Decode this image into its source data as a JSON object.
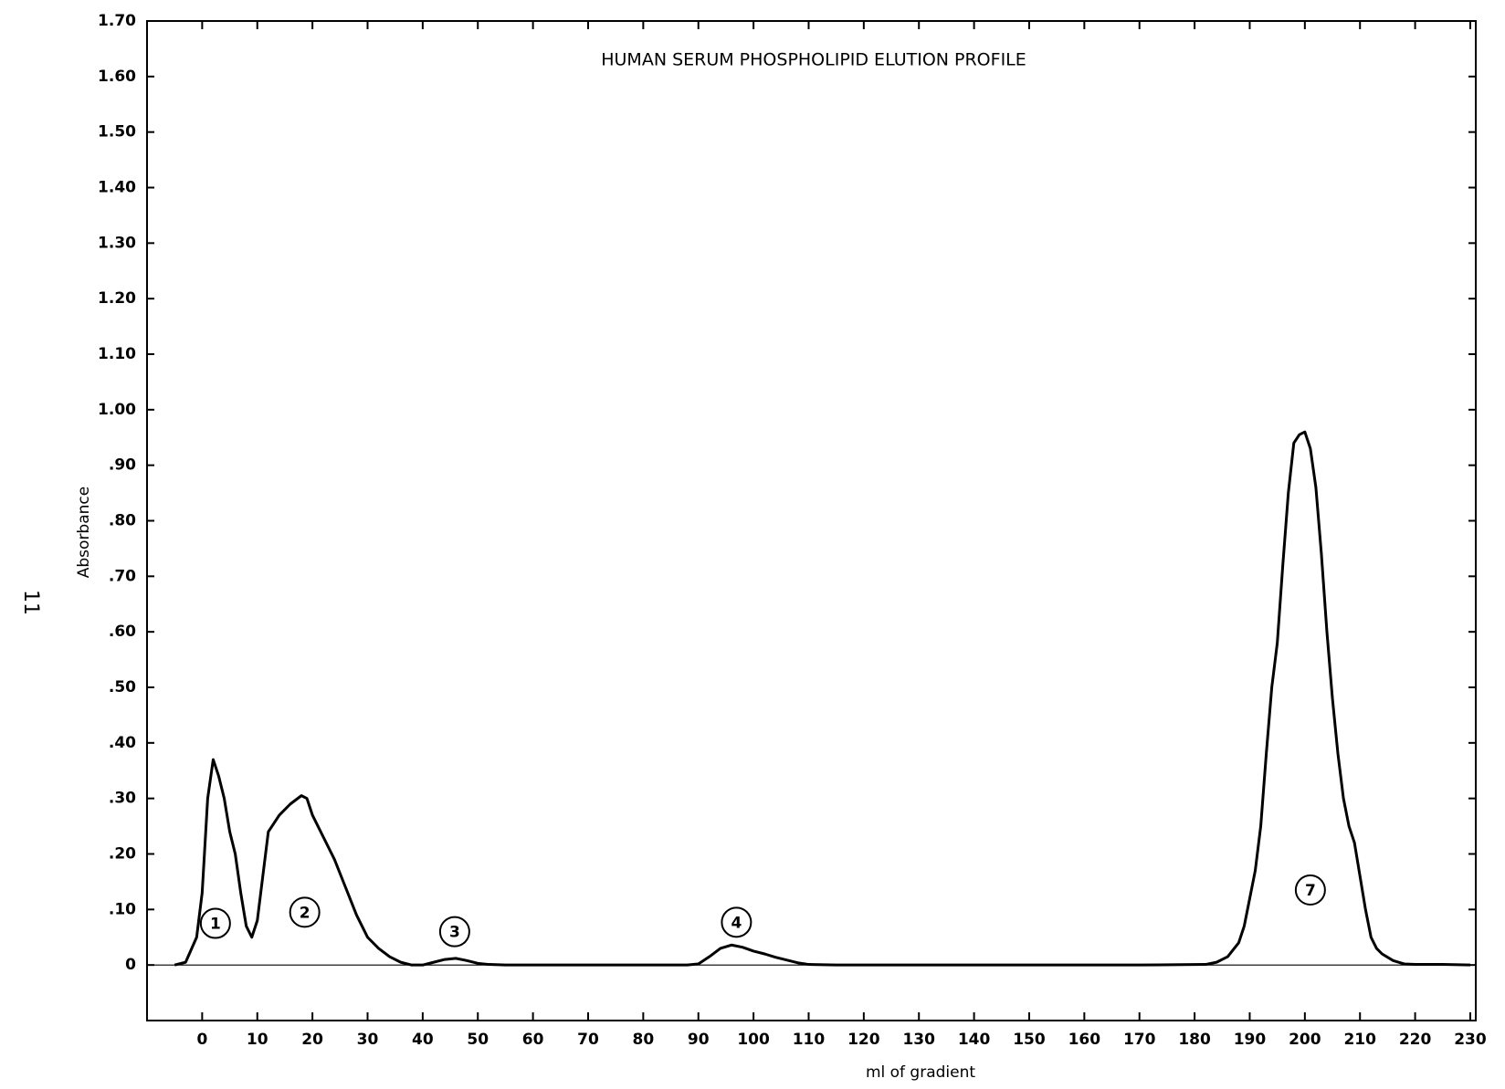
{
  "page_number": "11",
  "chart_data": {
    "type": "line",
    "title": "HUMAN SERUM PHOSPHOLIPID ELUTION PROFILE",
    "xlabel": "ml of gradient",
    "ylabel": "Absorbance",
    "xlim": [
      -10,
      231
    ],
    "ylim": [
      -0.1,
      1.7
    ],
    "xticks": [
      0,
      10,
      20,
      30,
      40,
      50,
      60,
      70,
      80,
      90,
      100,
      110,
      120,
      130,
      140,
      150,
      160,
      170,
      180,
      190,
      200,
      210,
      220,
      230
    ],
    "yticks": [
      0,
      {
        "value": 0.1,
        "label": ".10"
      },
      {
        "value": 0.2,
        "label": ".20"
      },
      {
        "value": 0.3,
        "label": ".30"
      },
      {
        "value": 0.4,
        "label": ".40"
      },
      {
        "value": 0.5,
        "label": ".50"
      },
      {
        "value": 0.6,
        "label": ".60"
      },
      {
        "value": 0.7,
        "label": ".70"
      },
      {
        "value": 0.8,
        "label": ".80"
      },
      {
        "value": 0.9,
        "label": ".90"
      },
      {
        "value": 1.0,
        "label": "1.00"
      },
      {
        "value": 1.1,
        "label": "1.10"
      },
      {
        "value": 1.2,
        "label": "1.20"
      },
      {
        "value": 1.3,
        "label": "1.30"
      },
      {
        "value": 1.4,
        "label": "1.40"
      },
      {
        "value": 1.5,
        "label": "1.50"
      },
      {
        "value": 1.6,
        "label": "1.60"
      },
      {
        "value": 1.7,
        "label": "1.70"
      }
    ],
    "grid": false,
    "series": [
      {
        "color": "#000000",
        "x": [
          -5,
          -3,
          -1,
          0,
          1,
          2,
          3,
          4,
          5,
          6,
          7,
          8,
          9,
          10,
          11,
          12,
          14,
          16,
          18,
          19,
          20,
          22,
          24,
          26,
          28,
          30,
          32,
          34,
          36,
          38,
          40,
          42,
          44,
          46,
          48,
          50,
          52,
          55,
          60,
          70,
          80,
          88,
          90,
          92,
          94,
          96,
          98,
          100,
          102,
          104,
          106,
          108,
          110,
          115,
          130,
          150,
          170,
          182,
          184,
          186,
          188,
          189,
          190,
          191,
          192,
          193,
          194,
          195,
          196,
          197,
          198,
          199,
          200,
          201,
          202,
          203,
          204,
          205,
          206,
          207,
          208,
          209,
          210,
          211,
          212,
          213,
          214,
          216,
          218,
          220,
          225,
          230
        ],
        "values": [
          0,
          0.005,
          0.05,
          0.13,
          0.3,
          0.37,
          0.34,
          0.3,
          0.24,
          0.2,
          0.13,
          0.07,
          0.05,
          0.08,
          0.16,
          0.24,
          0.27,
          0.29,
          0.305,
          0.3,
          0.27,
          0.23,
          0.19,
          0.14,
          0.09,
          0.05,
          0.03,
          0.015,
          0.005,
          0,
          0,
          0.005,
          0.01,
          0.012,
          0.008,
          0.003,
          0.001,
          0,
          0,
          0,
          0,
          0,
          0.002,
          0.015,
          0.03,
          0.036,
          0.032,
          0.025,
          0.02,
          0.014,
          0.009,
          0.004,
          0.001,
          0,
          0,
          0,
          0,
          0.001,
          0.005,
          0.015,
          0.04,
          0.07,
          0.12,
          0.17,
          0.25,
          0.38,
          0.5,
          0.58,
          0.72,
          0.85,
          0.94,
          0.955,
          0.96,
          0.93,
          0.86,
          0.74,
          0.6,
          0.48,
          0.38,
          0.3,
          0.25,
          0.22,
          0.16,
          0.1,
          0.05,
          0.03,
          0.02,
          0.008,
          0.002,
          0.001,
          0.001,
          0
        ]
      }
    ],
    "annotations": [
      {
        "text": "1",
        "x": 2.4,
        "y": 0.075
      },
      {
        "text": "2",
        "x": 18.6,
        "y": 0.095
      },
      {
        "text": "3",
        "x": 45.8,
        "y": 0.06
      },
      {
        "text": "4",
        "x": 96.9,
        "y": 0.077
      },
      {
        "text": "7",
        "x": 201,
        "y": 0.135
      }
    ]
  }
}
